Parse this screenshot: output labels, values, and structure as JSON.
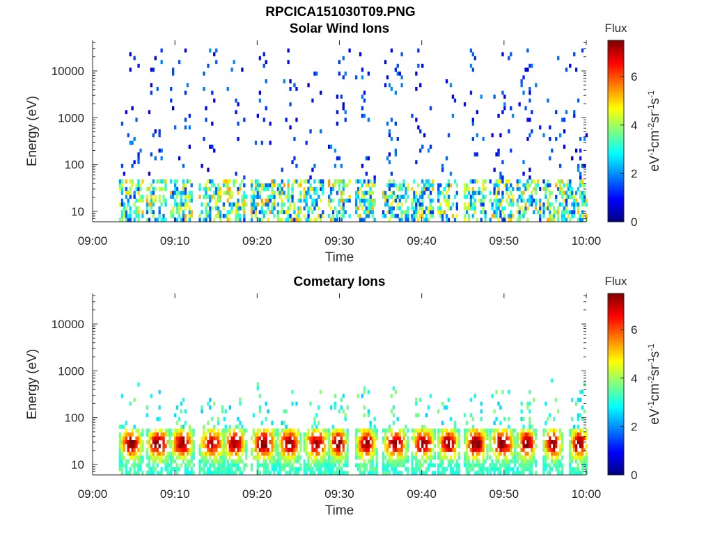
{
  "figure_title": "RPCICA151030T09.PNG",
  "chart_data": [
    {
      "type": "heatmap",
      "title": "Solar Wind Ions",
      "xlabel": "Time",
      "ylabel": "Energy (eV)",
      "y_scale": "log",
      "ylim": [
        6,
        45000
      ],
      "xlim": [
        "09:00",
        "10:00"
      ],
      "x_ticks": [
        "09:00",
        "09:10",
        "09:20",
        "09:30",
        "09:40",
        "09:50",
        "10:00"
      ],
      "y_ticks": [
        "10",
        "100",
        "1000",
        "10000"
      ],
      "colorbar": {
        "label": "Flux",
        "units": "eV-1cm-2sr-1s-1",
        "ticks": [
          "0",
          "2",
          "4",
          "6"
        ],
        "range": [
          0,
          7.5
        ],
        "colormap": "jet"
      },
      "bursts": [
        {
          "t": 4.5,
          "peak": 2.4
        },
        {
          "t": 7.8,
          "peak": 2.8
        },
        {
          "t": 10.7,
          "peak": 2.6
        },
        {
          "t": 14.2,
          "peak": 2.5
        },
        {
          "t": 17.1,
          "peak": 2.6
        },
        {
          "t": 20.5,
          "peak": 2.8
        },
        {
          "t": 23.7,
          "peak": 2.7
        },
        {
          "t": 26.9,
          "peak": 2.5
        },
        {
          "t": 29.9,
          "peak": 2.6
        },
        {
          "t": 33.2,
          "peak": 2.6
        },
        {
          "t": 36.5,
          "peak": 2.5
        },
        {
          "t": 40.0,
          "peak": 2.5
        },
        {
          "t": 43.2,
          "peak": 2.6
        },
        {
          "t": 46.4,
          "peak": 2.4
        },
        {
          "t": 49.5,
          "peak": 2.5
        },
        {
          "t": 52.8,
          "peak": 2.5
        },
        {
          "t": 56.0,
          "peak": 2.5
        },
        {
          "t": 59.2,
          "peak": 2.5
        }
      ]
    },
    {
      "type": "heatmap",
      "title": "Cometary Ions",
      "xlabel": "Time",
      "ylabel": "Energy (eV)",
      "y_scale": "log",
      "ylim": [
        6,
        45000
      ],
      "xlim": [
        "09:00",
        "10:00"
      ],
      "x_ticks": [
        "09:00",
        "09:10",
        "09:20",
        "09:30",
        "09:40",
        "09:50",
        "10:00"
      ],
      "y_ticks": [
        "10",
        "100",
        "1000",
        "10000"
      ],
      "colorbar": {
        "label": "Flux",
        "units": "eV-1cm-2sr-1s-1",
        "ticks": [
          "0",
          "2",
          "4",
          "6"
        ],
        "range": [
          0,
          7.5
        ],
        "colormap": "jet"
      },
      "bursts": [
        {
          "t": 4.5,
          "peak": 6.4
        },
        {
          "t": 7.8,
          "peak": 6.6
        },
        {
          "t": 10.7,
          "peak": 6.3
        },
        {
          "t": 14.2,
          "peak": 6.0
        },
        {
          "t": 17.1,
          "peak": 6.4
        },
        {
          "t": 20.5,
          "peak": 6.6
        },
        {
          "t": 23.7,
          "peak": 6.5
        },
        {
          "t": 26.9,
          "peak": 6.3
        },
        {
          "t": 29.9,
          "peak": 6.5
        },
        {
          "t": 33.2,
          "peak": 6.4
        },
        {
          "t": 36.5,
          "peak": 6.3
        },
        {
          "t": 40.0,
          "peak": 6.4
        },
        {
          "t": 43.2,
          "peak": 6.5
        },
        {
          "t": 46.4,
          "peak": 6.6
        },
        {
          "t": 49.5,
          "peak": 6.5
        },
        {
          "t": 52.8,
          "peak": 6.6
        },
        {
          "t": 56.0,
          "peak": 6.5
        },
        {
          "t": 59.2,
          "peak": 6.6
        }
      ]
    }
  ]
}
